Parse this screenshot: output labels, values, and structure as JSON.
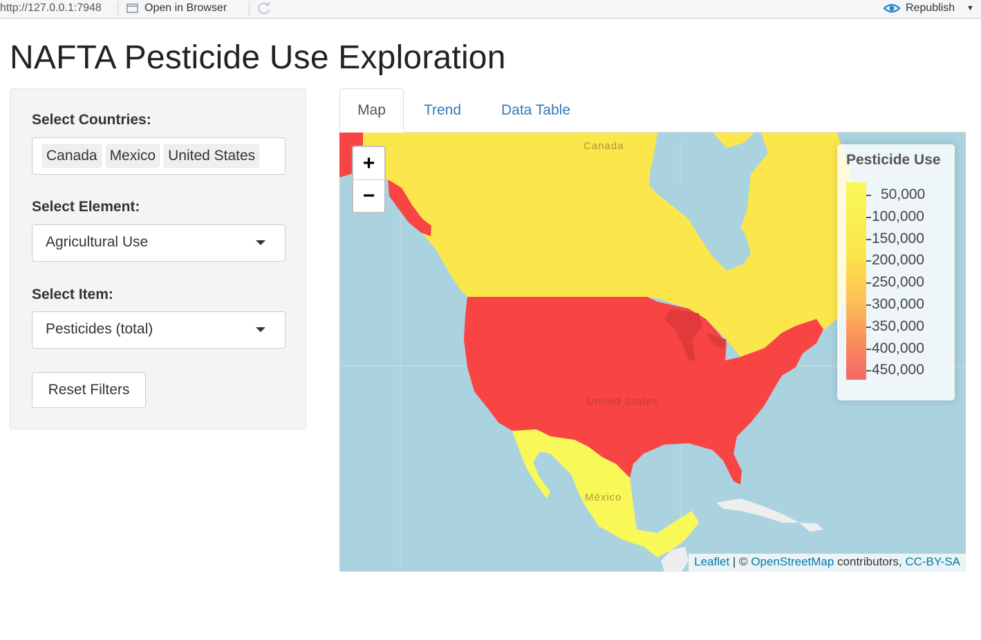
{
  "topbar": {
    "url": "http://127.0.0.1:7948",
    "open_in_browser": "Open in Browser",
    "republish": "Republish"
  },
  "page": {
    "title": "NAFTA Pesticide Use Exploration"
  },
  "sidebar": {
    "countries_label": "Select Countries:",
    "countries": [
      "Canada",
      "Mexico",
      "United States"
    ],
    "element_label": "Select Element:",
    "element_value": "Agricultural Use",
    "item_label": "Select Item:",
    "item_value": "Pesticides (total)",
    "reset_label": "Reset Filters"
  },
  "tabs": [
    {
      "label": "Map",
      "active": true
    },
    {
      "label": "Trend",
      "active": false
    },
    {
      "label": "Data Table",
      "active": false
    }
  ],
  "map": {
    "zoom_in": "+",
    "zoom_out": "−",
    "labels": {
      "canada": "Canada",
      "us": "United States",
      "mexico": "México"
    },
    "legend": {
      "title": "Pesticide Use",
      "ticks": [
        "50,000",
        "100,000",
        "150,000",
        "200,000",
        "250,000",
        "300,000",
        "350,000",
        "400,000",
        "450,000"
      ]
    },
    "attribution": {
      "leaflet": "Leaflet",
      "sep": " | © ",
      "osm": "OpenStreetMap",
      "contrib": " contributors, ",
      "license": "CC-BY-SA"
    },
    "colors": {
      "canada": "#fbe74b",
      "us": "#f94444",
      "mexico": "#f8f859",
      "water": "#aad3df",
      "land_other": "#eeeeee"
    }
  }
}
